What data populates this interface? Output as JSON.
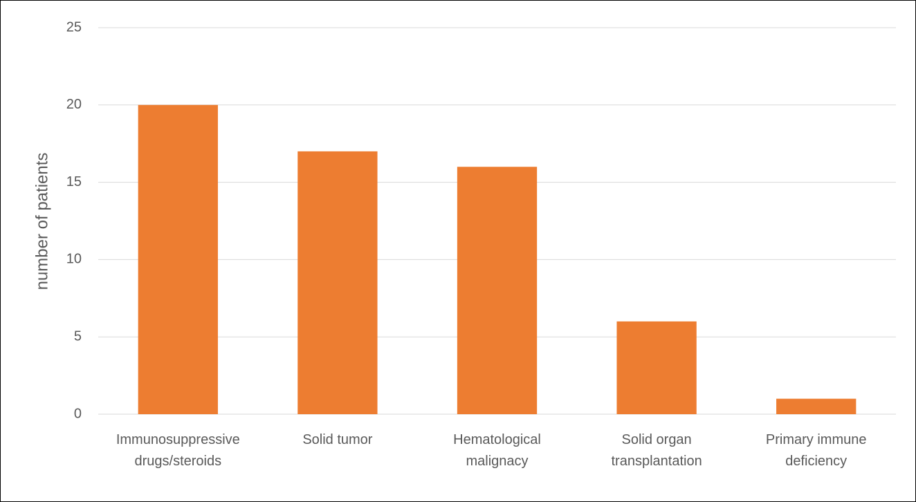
{
  "chart_data": {
    "type": "bar",
    "y_label": "number of patients",
    "categories": [
      "Immunosuppressive drugs/steroids",
      "Solid tumor",
      "Hematological malignacy",
      "Solid organ transplantation",
      "Primary immune deficiency"
    ],
    "values": [
      20,
      17,
      16,
      6,
      1
    ],
    "color": "#ed7d31",
    "ylim": [
      0,
      25
    ],
    "yticks": [
      0,
      5,
      10,
      15,
      20,
      25
    ],
    "grid": true
  }
}
